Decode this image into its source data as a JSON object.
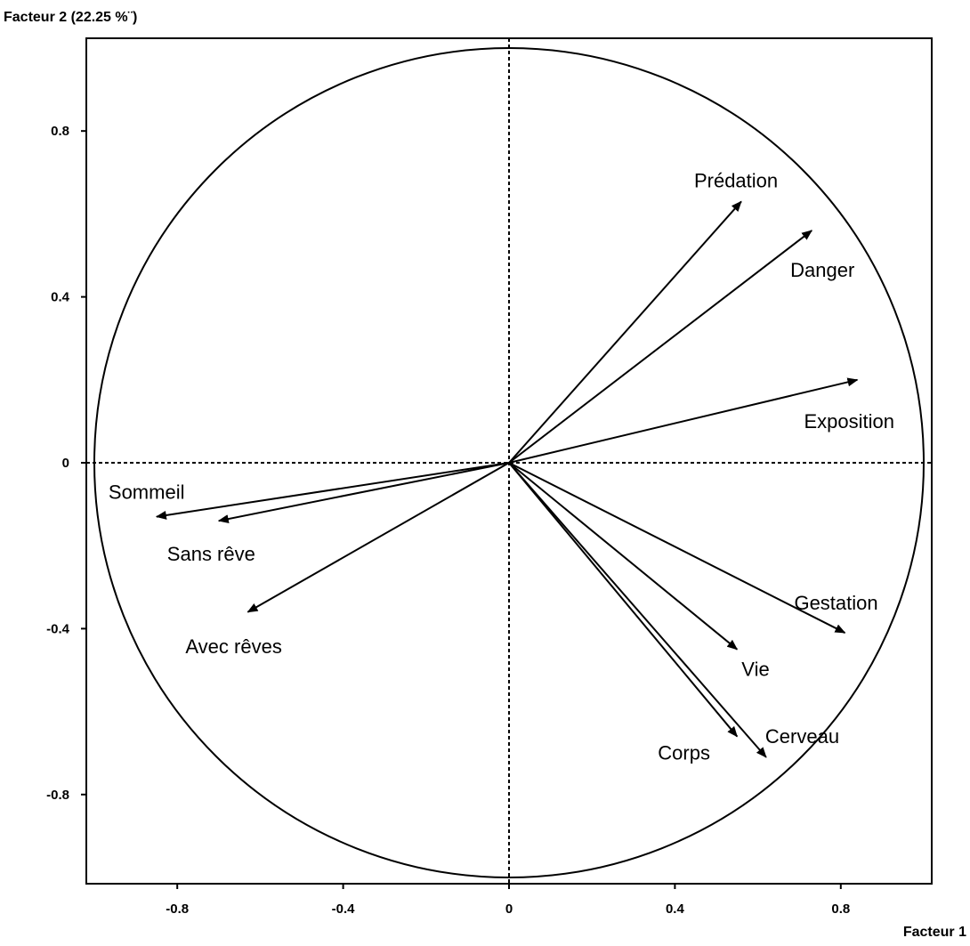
{
  "chart_data": {
    "type": "scatter",
    "subtype": "correlation-circle",
    "xlabel": "Facteur 1",
    "ylabel": "Facteur 2 (22.25 %¨)",
    "xlim": [
      -1.02,
      1.02
    ],
    "ylim": [
      -1.02,
      1.02
    ],
    "x_ticks": [
      {
        "value": -0.8,
        "label": "-0.8"
      },
      {
        "value": -0.4,
        "label": "-0.4"
      },
      {
        "value": 0,
        "label": "0"
      },
      {
        "value": 0.4,
        "label": "0.4"
      },
      {
        "value": 0.8,
        "label": "0.8"
      }
    ],
    "y_ticks": [
      {
        "value": 0.8,
        "label": "0.8"
      },
      {
        "value": 0.4,
        "label": "0.4"
      },
      {
        "value": 0,
        "label": "0"
      },
      {
        "value": -0.4,
        "label": "-0.4"
      },
      {
        "value": -0.8,
        "label": "-0.8"
      }
    ],
    "unit_circle": true,
    "grid": false,
    "reference_lines": "dashed at x=0 and y=0",
    "variables": [
      {
        "name": "Prédation",
        "x": 0.56,
        "y": 0.63
      },
      {
        "name": "Danger",
        "x": 0.73,
        "y": 0.56
      },
      {
        "name": "Exposition",
        "x": 0.84,
        "y": 0.2
      },
      {
        "name": "Sommeil",
        "x": -0.85,
        "y": -0.13
      },
      {
        "name": "Sans rêve",
        "x": -0.7,
        "y": -0.14
      },
      {
        "name": "Avec rêves",
        "x": -0.63,
        "y": -0.36
      },
      {
        "name": "Gestation",
        "x": 0.81,
        "y": -0.41
      },
      {
        "name": "Vie",
        "x": 0.55,
        "y": -0.45
      },
      {
        "name": "Corps",
        "x": 0.55,
        "y": -0.66
      },
      {
        "name": "Cerveau",
        "x": 0.62,
        "y": -0.71
      }
    ]
  }
}
